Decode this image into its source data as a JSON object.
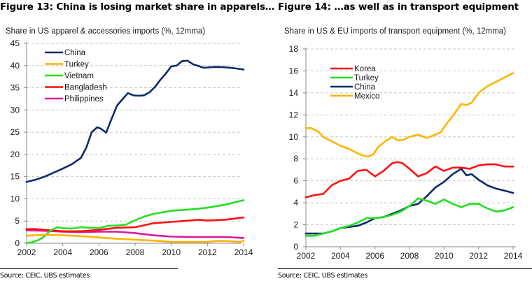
{
  "figures": [
    {
      "title": "Figure 13: China is losing market share in apparels…",
      "subtitle": "Share in US apparel & accessories imports (%, 12mma)",
      "source": "Source:  CEIC, UBS estimates"
    },
    {
      "title": "Figure 14: …as well as in transport equipment",
      "subtitle": "Share in US & EU imports of transport equipment  (%, 12mma)",
      "source": "Source:  CEIC, UBS estimates"
    }
  ],
  "chart_data": [
    {
      "type": "line",
      "title": "Figure 13: China is losing market share in apparels…",
      "subtitle": "Share in US apparel & accessories imports (%, 12mma)",
      "xlabel": "",
      "ylabel": "",
      "xlim": [
        2002,
        2014
      ],
      "ylim": [
        0,
        45
      ],
      "yticks": [
        0,
        5,
        10,
        15,
        20,
        25,
        30,
        35,
        40,
        45
      ],
      "xticks": [
        2002,
        2004,
        2006,
        2008,
        2010,
        2012,
        2014
      ],
      "grid": "horizontal-dashed",
      "legend_position": "top-left",
      "series": [
        {
          "name": "China",
          "color": "#0d2b6b",
          "x": [
            2002,
            2002.5,
            2003,
            2003.5,
            2004,
            2004.5,
            2005,
            2005.3,
            2005.6,
            2005.9,
            2006.1,
            2006.4,
            2006.7,
            2007,
            2007.3,
            2007.6,
            2007.9,
            2008.2,
            2008.5,
            2008.8,
            2009.1,
            2009.4,
            2009.7,
            2010,
            2010.3,
            2010.6,
            2010.9,
            2011.2,
            2011.5,
            2011.8,
            2012.1,
            2012.5,
            2013,
            2013.5,
            2014
          ],
          "values": [
            13.8,
            14.3,
            15.0,
            15.9,
            16.8,
            17.8,
            19.2,
            21.5,
            25.0,
            26.1,
            25.8,
            24.9,
            28.0,
            31.0,
            32.4,
            33.8,
            33.3,
            33.2,
            33.3,
            34.0,
            35.2,
            36.8,
            38.2,
            39.8,
            40.0,
            41.0,
            41.1,
            40.3,
            39.9,
            39.5,
            39.6,
            39.7,
            39.6,
            39.4,
            39.1
          ]
        },
        {
          "name": "Turkey",
          "color": "#ffb400",
          "x": [
            2002,
            2003,
            2004,
            2005,
            2006,
            2007,
            2008,
            2009,
            2010,
            2011,
            2012,
            2012.5,
            2013,
            2013.8,
            2014
          ],
          "values": [
            1.7,
            1.9,
            1.8,
            1.6,
            1.3,
            1.0,
            0.8,
            0.6,
            0.3,
            0.3,
            0.3,
            0.5,
            0.5,
            0.3,
            0.5
          ]
        },
        {
          "name": "Vietnam",
          "color": "#22e022",
          "x": [
            2002,
            2002.3,
            2002.7,
            2003,
            2003.3,
            2003.7,
            2004,
            2004.5,
            2005,
            2005.5,
            2006,
            2006.5,
            2007,
            2007.5,
            2008,
            2008.5,
            2009,
            2010,
            2011,
            2012,
            2013,
            2014
          ],
          "values": [
            0.1,
            0.2,
            0.8,
            1.6,
            2.8,
            3.6,
            3.4,
            3.3,
            3.6,
            3.5,
            3.4,
            3.9,
            4.0,
            4.2,
            5.2,
            6.0,
            6.6,
            7.3,
            7.6,
            8.0,
            8.7,
            9.7
          ]
        },
        {
          "name": "Bangladesh",
          "color": "#ff1010",
          "x": [
            2002,
            2002.5,
            2003,
            2004,
            2005,
            2006,
            2007,
            2008,
            2009,
            2010,
            2011,
            2011.5,
            2012,
            2013,
            2014
          ],
          "values": [
            3.2,
            3.2,
            3.0,
            2.7,
            2.7,
            3.0,
            3.5,
            3.6,
            4.5,
            4.8,
            5.1,
            5.3,
            5.1,
            5.3,
            5.8
          ]
        },
        {
          "name": "Philippines",
          "color": "#d81ba0",
          "x": [
            2002,
            2003,
            2004,
            2005,
            2006,
            2007,
            2008,
            2009,
            2010,
            2011,
            2012,
            2013,
            2014
          ],
          "values": [
            2.9,
            2.8,
            2.6,
            2.5,
            2.6,
            2.6,
            2.3,
            1.8,
            1.5,
            1.4,
            1.4,
            1.4,
            1.2
          ]
        }
      ]
    },
    {
      "type": "line",
      "title": "Figure 14: …as well as in transport equipment",
      "subtitle": "Share in US & EU imports of transport equipment  (%, 12mma)",
      "xlabel": "",
      "ylabel": "",
      "xlim": [
        2002,
        2014
      ],
      "ylim": [
        0,
        18
      ],
      "yticks": [
        0,
        2,
        4,
        6,
        8,
        10,
        12,
        14,
        16,
        18
      ],
      "xticks": [
        2002,
        2004,
        2006,
        2008,
        2010,
        2012,
        2014
      ],
      "grid": "horizontal-dashed",
      "legend_position": "top-left",
      "series": [
        {
          "name": "Korea",
          "color": "#ff1010",
          "x": [
            2002,
            2002.5,
            2003,
            2003.5,
            2004,
            2004.5,
            2005,
            2005.5,
            2006,
            2006.5,
            2007,
            2007.3,
            2007.6,
            2008,
            2008.5,
            2009,
            2009.5,
            2010,
            2010.5,
            2011,
            2011.5,
            2012,
            2012.5,
            2013,
            2013.5,
            2014
          ],
          "values": [
            4.5,
            4.7,
            4.8,
            5.6,
            6.0,
            6.2,
            6.9,
            7.0,
            6.4,
            6.9,
            7.6,
            7.7,
            7.6,
            7.1,
            6.4,
            6.7,
            7.3,
            6.9,
            7.2,
            7.2,
            7.1,
            7.4,
            7.5,
            7.5,
            7.3,
            7.3
          ]
        },
        {
          "name": "Turkey",
          "color": "#22e022",
          "x": [
            2002,
            2002.5,
            2003,
            2003.5,
            2004,
            2004.5,
            2005,
            2005.5,
            2006,
            2006.5,
            2007,
            2007.5,
            2008,
            2008.5,
            2009,
            2009.5,
            2010,
            2010.5,
            2011,
            2011.5,
            2012,
            2012.5,
            2013,
            2013.5,
            2014
          ],
          "values": [
            1.0,
            1.0,
            1.2,
            1.4,
            1.7,
            1.9,
            2.2,
            2.6,
            2.6,
            2.7,
            2.9,
            3.2,
            3.7,
            4.4,
            4.2,
            3.9,
            4.3,
            3.9,
            3.6,
            3.9,
            3.9,
            3.5,
            3.2,
            3.3,
            3.6
          ]
        },
        {
          "name": "China",
          "color": "#0d2b6b",
          "x": [
            2002,
            2002.5,
            2003,
            2003.5,
            2004,
            2004.5,
            2005,
            2005.5,
            2006,
            2006.5,
            2007,
            2007.5,
            2008,
            2008.5,
            2009,
            2009.5,
            2010,
            2010.5,
            2011,
            2011.3,
            2011.6,
            2012,
            2012.5,
            2013,
            2013.5,
            2014
          ],
          "values": [
            1.2,
            1.2,
            1.2,
            1.4,
            1.7,
            1.8,
            1.9,
            2.2,
            2.6,
            2.7,
            3.0,
            3.3,
            3.7,
            3.9,
            4.6,
            5.4,
            5.9,
            6.6,
            7.1,
            6.5,
            6.6,
            6.1,
            5.6,
            5.3,
            5.1,
            4.9
          ]
        },
        {
          "name": "Mexico",
          "color": "#ffb400",
          "x": [
            2002,
            2002.3,
            2002.7,
            2003,
            2003.5,
            2004,
            2004.5,
            2005,
            2005.3,
            2005.6,
            2005.9,
            2006.2,
            2006.6,
            2007,
            2007.3,
            2007.6,
            2008,
            2008.5,
            2009,
            2009.5,
            2009.8,
            2010.2,
            2010.6,
            2011,
            2011.3,
            2011.6,
            2012,
            2012.5,
            2013,
            2013.5,
            2014
          ],
          "values": [
            10.8,
            10.8,
            10.5,
            10.0,
            9.6,
            9.2,
            8.9,
            8.5,
            8.3,
            8.2,
            8.4,
            9.1,
            9.6,
            10.0,
            9.7,
            9.7,
            10.0,
            10.2,
            9.9,
            10.2,
            10.4,
            11.3,
            12.1,
            13.0,
            12.9,
            13.1,
            14.0,
            14.6,
            15.0,
            15.4,
            15.8
          ]
        }
      ]
    }
  ]
}
